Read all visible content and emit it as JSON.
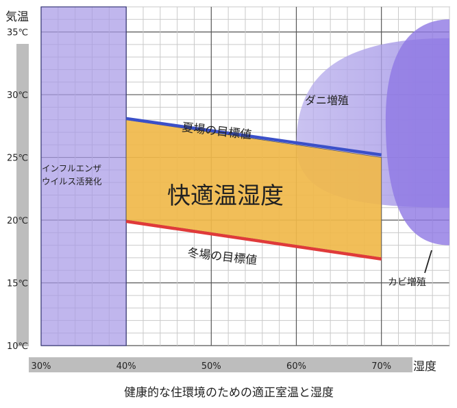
{
  "chart_data": {
    "type": "area",
    "title": "",
    "caption": "健康的な住環境のための適正室温と湿度",
    "xlabel": "湿度",
    "ylabel": "気温",
    "xlim": [
      30,
      78
    ],
    "ylim": [
      10,
      37
    ],
    "x_ticks": [
      {
        "value": 30,
        "label": "30%"
      },
      {
        "value": 40,
        "label": "40%"
      },
      {
        "value": 50,
        "label": "50%"
      },
      {
        "value": 60,
        "label": "60%"
      },
      {
        "value": 70,
        "label": "70%"
      }
    ],
    "y_ticks": [
      {
        "value": 10,
        "label": "10℃"
      },
      {
        "value": 15,
        "label": "15℃"
      },
      {
        "value": 20,
        "label": "20℃"
      },
      {
        "value": 25,
        "label": "25℃"
      },
      {
        "value": 30,
        "label": "30℃"
      },
      {
        "value": 35,
        "label": "35℃"
      }
    ],
    "regions": {
      "influenza": {
        "label_line1": "インフルエンザ",
        "label_line2": "ウイルス活発化",
        "x_range": [
          30,
          40
        ],
        "color": "#a89ae6"
      },
      "comfort": {
        "label": "快適温湿度",
        "polygon": [
          [
            40,
            28
          ],
          [
            70,
            25
          ],
          [
            70,
            17
          ],
          [
            40,
            20
          ]
        ],
        "color": "#f0b84a"
      },
      "mites": {
        "label": "ダニ増殖",
        "color": "#b4a8ea"
      },
      "mold": {
        "label": "カビ増殖",
        "color": "#9a84e8"
      }
    },
    "series": [
      {
        "name": "夏場の目標値",
        "x": [
          40,
          70
        ],
        "y": [
          28.1,
          25.2
        ],
        "color": "#3b50c8"
      },
      {
        "name": "冬場の目標値",
        "x": [
          40,
          70
        ],
        "y": [
          19.9,
          16.9
        ],
        "color": "#e03a3a"
      }
    ],
    "grid": true
  }
}
